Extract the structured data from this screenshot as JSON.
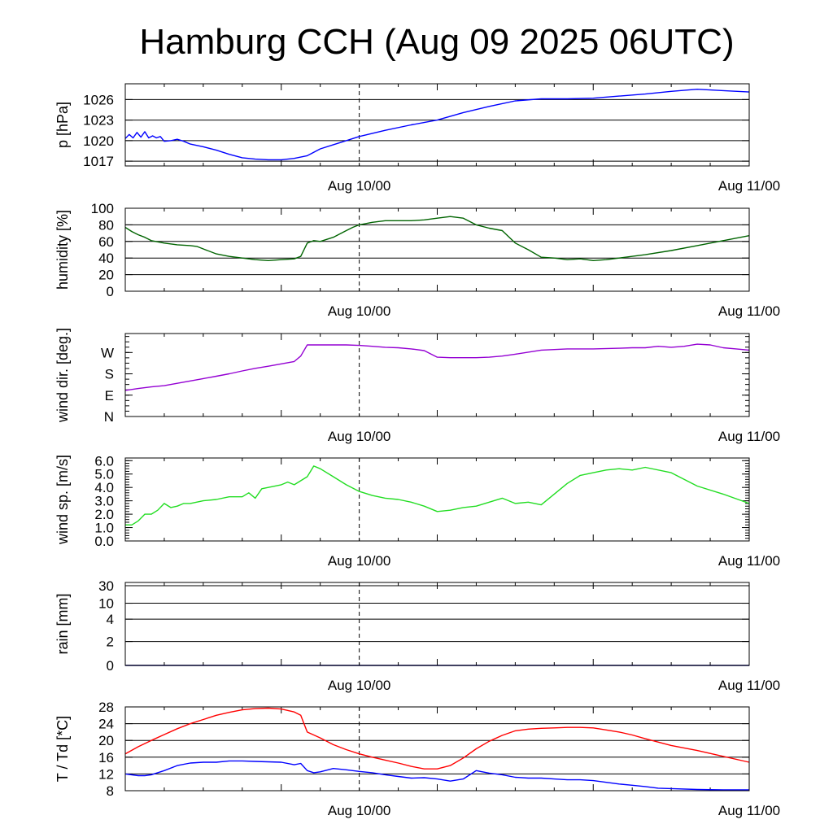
{
  "title": "Hamburg CCH (Aug 09 2025 06UTC)",
  "x_axis": {
    "start_hour_label": "Aug 09 06UTC",
    "tick_labels": [
      "Aug 10/00",
      "Aug 11/00"
    ]
  },
  "chart_data": [
    {
      "type": "line",
      "id": "pressure",
      "ylabel": "p [hPa]",
      "ylim": [
        1016.3,
        1028.3
      ],
      "yticks": [
        1017,
        1020,
        1023,
        1026
      ],
      "ytick_labels": [
        "1017",
        "1020",
        "1023",
        "1026"
      ],
      "grid": true,
      "series": [
        {
          "color": "#0000ff",
          "x": [
            0,
            0.3,
            0.6,
            0.9,
            1.2,
            1.5,
            1.8,
            2.1,
            2.4,
            2.7,
            3,
            3.5,
            4,
            4.5,
            5,
            6,
            7,
            8,
            9,
            10,
            11,
            12,
            13,
            14,
            15,
            16,
            17,
            18,
            20,
            22,
            24,
            26,
            28,
            30,
            32,
            34,
            36,
            38,
            40,
            42,
            44,
            46,
            48
          ],
          "values": [
            1020.3,
            1020.9,
            1020.4,
            1021.2,
            1020.5,
            1021.3,
            1020.4,
            1020.7,
            1020.4,
            1020.6,
            1019.9,
            1020.0,
            1020.2,
            1019.9,
            1019.5,
            1019.1,
            1018.6,
            1018.0,
            1017.5,
            1017.3,
            1017.2,
            1017.2,
            1017.4,
            1017.8,
            1018.8,
            1019.4,
            1020.0,
            1020.6,
            1021.5,
            1022.3,
            1023.0,
            1024.1,
            1025.0,
            1025.8,
            1026.1,
            1026.1,
            1026.2,
            1026.5,
            1026.8,
            1027.2,
            1027.5,
            1027.3,
            1027.1
          ]
        }
      ]
    },
    {
      "type": "line",
      "id": "humidity",
      "ylabel": "humidity [%]",
      "ylim": [
        0,
        100
      ],
      "yticks": [
        0,
        20,
        40,
        60,
        80,
        100
      ],
      "ytick_labels": [
        "0",
        "20",
        "40",
        "60",
        "80",
        "100"
      ],
      "grid": true,
      "series": [
        {
          "color": "#006400",
          "x": [
            0,
            0.5,
            1,
            1.5,
            2,
            3,
            4,
            5,
            5.5,
            6,
            7,
            8,
            9,
            10,
            11,
            12,
            13,
            13.5,
            14,
            14.5,
            15,
            16,
            17,
            17.5,
            18,
            19,
            20,
            21,
            22,
            23,
            24,
            25,
            26,
            27,
            28,
            29,
            30,
            31,
            32,
            33,
            34,
            35,
            36,
            37,
            38,
            40,
            42,
            44,
            46,
            48
          ],
          "values": [
            77,
            72,
            68,
            65,
            61,
            58,
            56,
            55,
            54,
            51,
            45,
            42,
            40,
            38,
            37,
            38,
            39,
            42,
            58,
            61,
            60,
            65,
            73,
            77,
            80,
            83,
            85,
            85,
            85,
            86,
            88,
            90,
            88,
            80,
            76,
            73,
            58,
            50,
            41,
            40,
            38,
            39,
            37,
            38,
            40,
            44,
            49,
            55,
            61,
            67
          ]
        }
      ]
    },
    {
      "type": "line",
      "id": "wind_direction",
      "ylabel": "wind dir. [deg.]",
      "ylim": [
        0,
        350
      ],
      "yticks": [
        0,
        90,
        180,
        270
      ],
      "ytick_labels": [
        "N",
        "E",
        "S",
        "W"
      ],
      "grid": false,
      "series": [
        {
          "color": "#9400d3",
          "x": [
            0,
            1,
            2,
            3,
            4,
            5,
            6,
            7,
            8,
            9,
            10,
            11,
            12,
            13,
            13.5,
            14,
            15,
            16,
            17,
            18,
            19,
            20,
            21,
            22,
            23,
            24,
            25,
            26,
            27,
            28,
            29,
            30,
            32,
            34,
            36,
            38,
            39,
            40,
            41,
            42,
            43,
            44,
            45,
            46,
            47,
            48
          ],
          "values": [
            110,
            118,
            125,
            130,
            140,
            150,
            160,
            170,
            180,
            192,
            203,
            212,
            222,
            232,
            255,
            302,
            302,
            302,
            302,
            300,
            296,
            292,
            290,
            285,
            278,
            250,
            248,
            248,
            248,
            250,
            255,
            263,
            280,
            285,
            285,
            288,
            290,
            290,
            296,
            292,
            296,
            305,
            302,
            290,
            285,
            280
          ]
        }
      ]
    },
    {
      "type": "line",
      "id": "wind_speed",
      "ylabel": "wind sp. [m/s]",
      "ylim": [
        0,
        6.2
      ],
      "yticks": [
        0,
        1,
        2,
        3,
        4,
        5,
        6
      ],
      "ytick_labels": [
        "0.0",
        "1.0",
        "2.0",
        "3.0",
        "4.0",
        "5.0",
        "6.0"
      ],
      "grid": false,
      "series": [
        {
          "color": "#22dd22",
          "x": [
            0,
            0.5,
            1,
            1.5,
            2,
            2.5,
            3,
            3.5,
            4,
            4.5,
            5,
            6,
            7,
            8,
            9,
            9.5,
            10,
            10.5,
            11,
            12,
            12.5,
            13,
            14,
            14.5,
            15,
            16,
            17,
            18,
            19,
            20,
            21,
            22,
            23,
            24,
            25,
            26,
            27,
            28,
            29,
            30,
            31,
            32,
            33,
            34,
            35,
            36,
            37,
            38,
            39,
            40,
            42,
            44,
            46,
            48
          ],
          "values": [
            1.2,
            1.2,
            1.5,
            2.0,
            2.0,
            2.3,
            2.8,
            2.5,
            2.6,
            2.8,
            2.8,
            3.0,
            3.1,
            3.3,
            3.3,
            3.6,
            3.2,
            3.9,
            4.0,
            4.2,
            4.4,
            4.2,
            4.8,
            5.6,
            5.4,
            4.8,
            4.2,
            3.7,
            3.4,
            3.2,
            3.1,
            2.9,
            2.6,
            2.2,
            2.3,
            2.5,
            2.6,
            2.9,
            3.2,
            2.8,
            2.9,
            2.7,
            3.5,
            4.3,
            4.9,
            5.1,
            5.3,
            5.4,
            5.3,
            5.5,
            5.1,
            4.1,
            3.5,
            2.8
          ]
        }
      ]
    },
    {
      "type": "line",
      "id": "rain",
      "ylabel": "rain [mm]",
      "ylim": [
        0,
        32
      ],
      "yticks": [
        0,
        2,
        4,
        10,
        30
      ],
      "ytick_labels": [
        "0",
        "2",
        "4",
        "10",
        "30"
      ],
      "grid": true,
      "series": [
        {
          "color": "#000080",
          "x": [
            0,
            48
          ],
          "values": [
            0,
            0
          ]
        }
      ]
    },
    {
      "type": "line",
      "id": "temperature",
      "ylabel": "T / Td [*C]",
      "ylim": [
        8,
        28
      ],
      "yticks": [
        8,
        12,
        16,
        20,
        24,
        28
      ],
      "ytick_labels": [
        "8",
        "12",
        "16",
        "20",
        "24",
        "28"
      ],
      "grid": true,
      "series": [
        {
          "color": "#ff0000",
          "x": [
            0,
            1,
            2,
            3,
            4,
            5,
            6,
            7,
            8,
            9,
            10,
            11,
            12,
            13,
            13.5,
            14,
            15,
            16,
            17,
            18,
            19,
            20,
            21,
            22,
            23,
            24,
            25,
            26,
            27,
            28,
            29,
            30,
            31,
            32,
            33,
            34,
            35,
            36,
            37,
            38,
            39,
            40,
            42,
            44,
            46,
            48
          ],
          "values": [
            16.8,
            18.5,
            20.0,
            21.4,
            22.8,
            24.0,
            25.0,
            26.0,
            26.7,
            27.3,
            27.6,
            27.7,
            27.5,
            26.8,
            26.0,
            22.0,
            20.6,
            19.0,
            17.8,
            16.8,
            16.0,
            15.3,
            14.6,
            13.8,
            13.2,
            13.2,
            14.0,
            15.8,
            18.0,
            19.8,
            21.2,
            22.3,
            22.7,
            22.9,
            23.0,
            23.1,
            23.1,
            23.0,
            22.5,
            22.0,
            21.3,
            20.4,
            18.8,
            17.6,
            16.2,
            14.8
          ]
        },
        {
          "color": "#0000ff",
          "x": [
            0,
            1,
            1.5,
            2,
            3,
            4,
            5,
            6,
            7,
            8,
            9,
            10,
            11,
            12,
            13,
            13.5,
            14,
            14.5,
            15,
            16,
            17,
            18,
            19,
            20,
            21,
            22,
            23,
            24,
            25,
            26,
            27,
            28,
            29,
            30,
            31,
            32,
            33,
            34,
            35,
            36,
            37,
            38,
            39,
            40,
            41,
            42,
            44,
            46,
            48
          ],
          "values": [
            12.0,
            11.6,
            11.6,
            11.8,
            12.8,
            14.0,
            14.6,
            14.8,
            14.8,
            15.1,
            15.1,
            15.0,
            14.9,
            14.8,
            14.2,
            14.5,
            12.8,
            12.3,
            12.5,
            13.3,
            13.0,
            12.6,
            12.3,
            11.8,
            11.4,
            11.0,
            11.1,
            10.8,
            10.3,
            10.8,
            12.8,
            12.2,
            11.8,
            11.2,
            11.0,
            11.0,
            10.8,
            10.6,
            10.6,
            10.4,
            10.0,
            9.6,
            9.3,
            9.0,
            8.6,
            8.5,
            8.3,
            8.2,
            8.2
          ]
        }
      ]
    }
  ]
}
